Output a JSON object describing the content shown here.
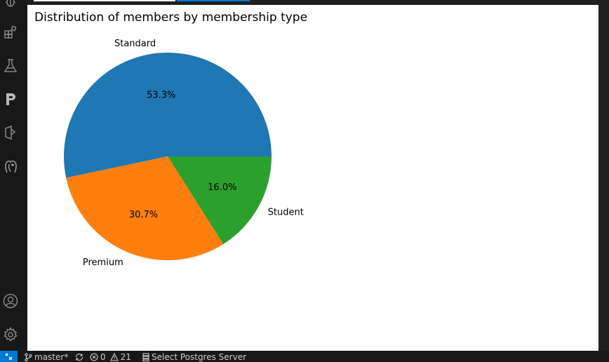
{
  "activity_bar": {
    "icons": [
      "debug-icon",
      "extensions-icon",
      "testing-icon",
      "postman-icon",
      "database-icon",
      "postgres-elephant-icon"
    ],
    "bottom_icons": [
      "account-icon",
      "settings-gear-icon"
    ]
  },
  "colors": {
    "accent": "#0078d4",
    "tab_active": "#ffffff",
    "tab_focus": "#0078d4",
    "standard": "#1f77b4",
    "premium": "#ff7f0e",
    "student": "#2ca02c"
  },
  "chart_data": {
    "type": "pie",
    "title": "Distribution of members by membership type",
    "categories": [
      "Standard",
      "Premium",
      "Student"
    ],
    "values": [
      53.3,
      30.7,
      16.0
    ],
    "labels": [
      "53.3%",
      "30.7%",
      "16.0%"
    ],
    "colors": [
      "#1f77b4",
      "#ff7f0e",
      "#2ca02c"
    ],
    "startangle": 0,
    "counterclockwise": true
  },
  "status_bar": {
    "branch": "master*",
    "errors": "0",
    "warnings": "21",
    "postgres": "Select Postgres Server"
  }
}
